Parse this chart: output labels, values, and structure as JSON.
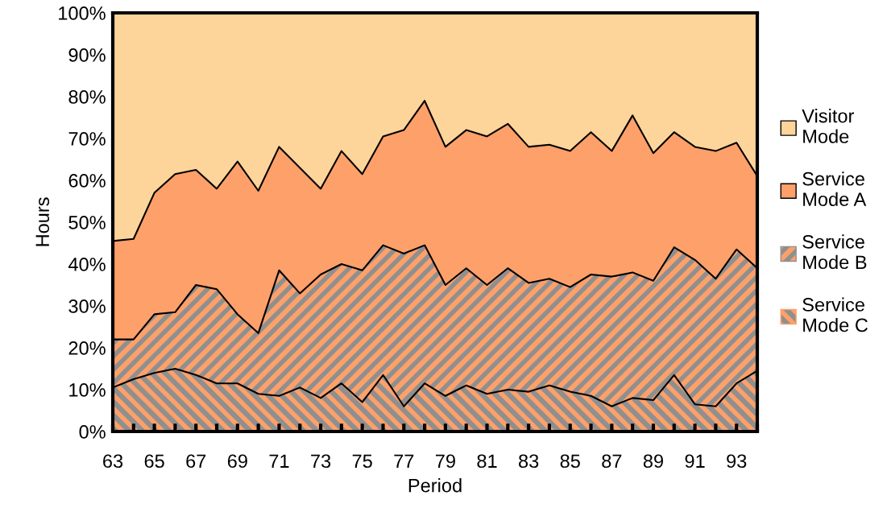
{
  "chart_data": {
    "type": "area",
    "stacked": true,
    "xlabel": "Period",
    "ylabel": "Hours",
    "x": [
      63,
      64,
      65,
      66,
      67,
      68,
      69,
      70,
      71,
      72,
      73,
      74,
      75,
      76,
      77,
      78,
      79,
      80,
      81,
      82,
      83,
      84,
      85,
      86,
      87,
      88,
      89,
      90,
      91,
      92,
      93,
      94
    ],
    "series": [
      {
        "name": "Service\nMode C",
        "color": "#8f8f8f",
        "values": [
          10.5,
          12.5,
          14,
          15,
          13.5,
          11.5,
          11.5,
          9,
          8.5,
          10.5,
          8,
          11.5,
          7,
          13.5,
          6,
          11.5,
          8.5,
          11,
          9,
          10,
          9.5,
          11,
          9.5,
          8.5,
          6,
          8,
          7.5,
          13.5,
          6.5,
          6,
          11.5,
          14.5
        ]
      },
      {
        "name": "Service\nMode B",
        "color": "#fda06a",
        "values": [
          11.5,
          9.5,
          14,
          13.5,
          21.5,
          22.5,
          16.5,
          14.5,
          30,
          22.5,
          29.5,
          28.5,
          31.5,
          31,
          36.5,
          33,
          26.5,
          28,
          26,
          29,
          26,
          25.5,
          25,
          29,
          31,
          30,
          28.5,
          30.5,
          34.5,
          30.5,
          32,
          24.5
        ]
      },
      {
        "name": "Service\nMode A",
        "color": "#fda06a",
        "values": [
          23.5,
          24,
          29,
          33,
          27.5,
          24,
          36.5,
          34,
          29.5,
          30,
          20.5,
          27,
          23,
          26,
          29.5,
          34.5,
          33,
          33,
          35.5,
          34.5,
          32.5,
          32,
          32.5,
          34,
          30,
          37.5,
          30.5,
          27.5,
          27,
          30.5,
          25.5,
          22
        ]
      },
      {
        "name": "Visitor\nMode",
        "color": "#fdd49a",
        "values": [
          54.5,
          54,
          43,
          38.5,
          37.5,
          42,
          35.5,
          42.5,
          32,
          37,
          42,
          33,
          38.5,
          29.5,
          28,
          21,
          32,
          28,
          29.5,
          26.5,
          32,
          31.5,
          33,
          28.5,
          33,
          24.5,
          33.5,
          28.5,
          32,
          33,
          31,
          39
        ]
      }
    ],
    "xlim": [
      63,
      94
    ],
    "xticks": [
      63,
      {
        "value": 64,
        "label": null
      },
      65,
      {
        "value": 66,
        "label": null
      },
      67,
      {
        "value": 68,
        "label": null
      },
      69,
      {
        "value": 70,
        "label": null
      },
      71,
      {
        "value": 72,
        "label": null
      },
      73,
      {
        "value": 74,
        "label": null
      },
      75,
      {
        "value": 76,
        "label": null
      },
      77,
      {
        "value": 78,
        "label": null
      },
      79,
      {
        "value": 80,
        "label": null
      },
      81,
      {
        "value": 82,
        "label": null
      },
      83,
      {
        "value": 84,
        "label": null
      },
      85,
      {
        "value": 86,
        "label": null
      },
      87,
      {
        "value": 88,
        "label": null
      },
      89,
      {
        "value": 90,
        "label": null
      },
      91,
      {
        "value": 92,
        "label": null
      },
      93,
      {
        "value": 94,
        "label": null
      }
    ],
    "ylim": [
      0,
      100
    ],
    "yticks": [
      {
        "value": 0,
        "label": "0%"
      },
      {
        "value": 10,
        "label": "10%"
      },
      {
        "value": 20,
        "label": "20%"
      },
      {
        "value": 30,
        "label": "30%"
      },
      {
        "value": 40,
        "label": "40%"
      },
      {
        "value": 50,
        "label": "50%"
      },
      {
        "value": 60,
        "label": "60%"
      },
      {
        "value": 70,
        "label": "70%"
      },
      {
        "value": 80,
        "label": "80%"
      },
      {
        "value": 90,
        "label": "90%"
      },
      {
        "value": 100,
        "label": "100%"
      }
    ],
    "grid": false,
    "legend": "right"
  }
}
